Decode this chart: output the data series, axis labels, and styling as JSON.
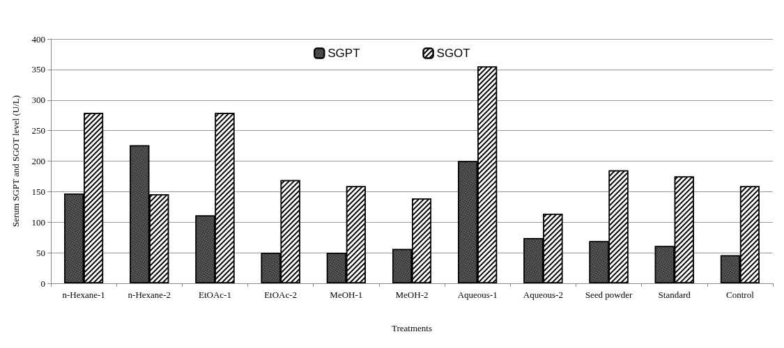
{
  "chart_data": {
    "type": "bar",
    "xlabel": "Treatments",
    "ylabel": "Serum SGPT and SGOT level (U/L)",
    "categories": [
      "n-Hexane-1",
      "n-Hexane-2",
      "EtOAc-1",
      "EtOAc-2",
      "MeOH-1",
      "MeOH-2",
      "Aqueous-1",
      "Aqueous-2",
      "Seed powder",
      "Standard",
      "Control"
    ],
    "series": [
      {
        "name": "SGPT",
        "color": "#333333",
        "values": [
          147,
          226,
          111,
          50,
          50,
          56,
          200,
          74,
          69,
          61,
          46
        ]
      },
      {
        "name": "SGOT",
        "color": "#ffffff",
        "values": [
          279,
          146,
          279,
          169,
          159,
          139,
          355,
          114,
          185,
          175,
          159
        ]
      }
    ],
    "ylim": [
      0,
      400
    ],
    "yticks": [
      0,
      50,
      100,
      150,
      200,
      250,
      300,
      350,
      400
    ],
    "grid": "y",
    "legend": "top"
  }
}
